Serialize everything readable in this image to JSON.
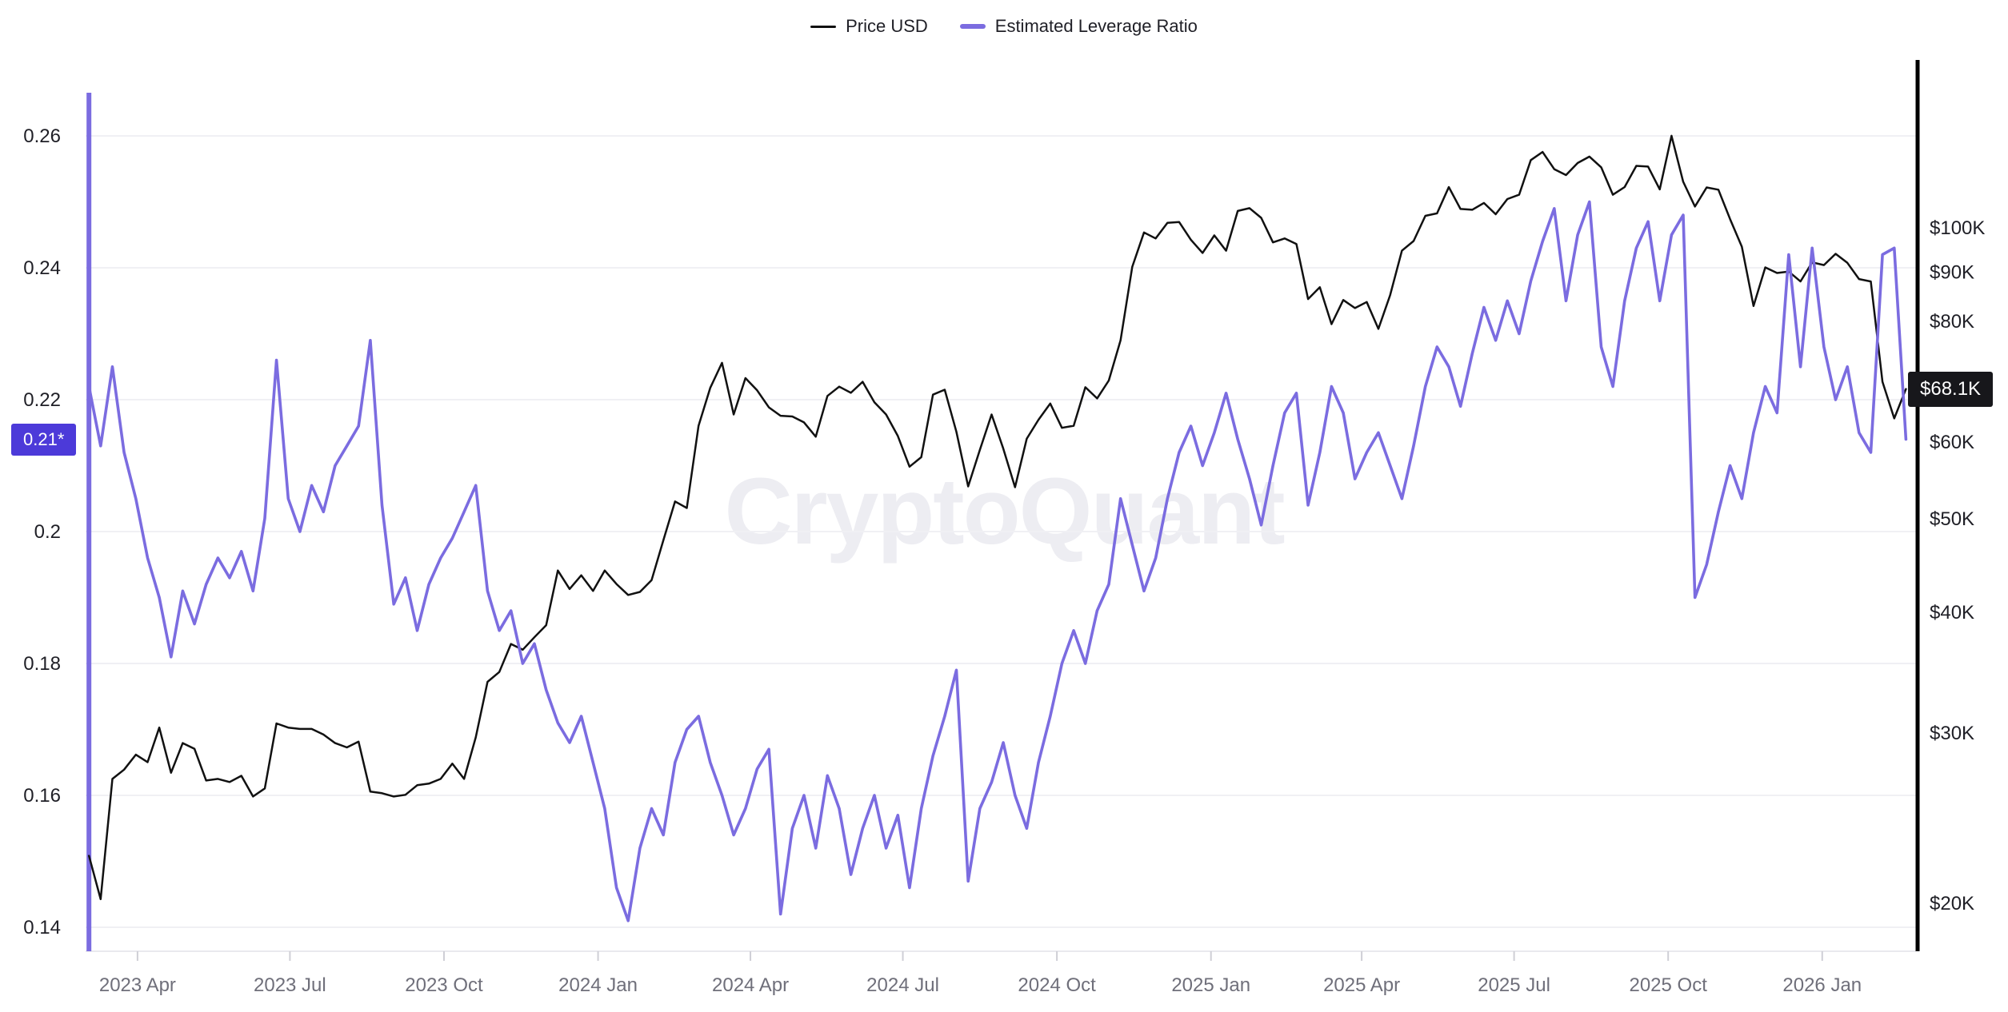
{
  "watermark": "CryptoQuant",
  "legend": {
    "items": [
      {
        "label": "Price USD",
        "color": "#111111"
      },
      {
        "label": "Estimated Leverage Ratio",
        "color": "#7b6ce0"
      }
    ]
  },
  "badges": {
    "left": {
      "text": "0.21*",
      "value": 0.214,
      "bg": "#4c3ad9"
    },
    "right": {
      "text": "$68.1K",
      "value": 68.1,
      "bg": "#17171b"
    }
  },
  "colors": {
    "price_line": "#111111",
    "leverage_line": "#7b6ce0",
    "grid": "#f0f0f4",
    "axis_label": "#1f1f26",
    "x_label": "#6f6f7a",
    "x_tick_mark": "#cfcfd6",
    "baseline": "#e9e9ee",
    "right_axis_line": "#000000"
  },
  "chart_data": {
    "type": "line",
    "title": "",
    "x_start_date": "2023-03-03",
    "interval_days": 7,
    "axis_window": {
      "start": "2023-03-01",
      "end": "2026-02-26"
    },
    "left_axis": {
      "scale": "linear",
      "ticks": [
        {
          "v": 0.26,
          "label": "0.26"
        },
        {
          "v": 0.24,
          "label": "0.24"
        },
        {
          "v": 0.22,
          "label": "0.22"
        },
        {
          "v": 0.2,
          "label": "0.2"
        },
        {
          "v": 0.18,
          "label": "0.18"
        },
        {
          "v": 0.16,
          "label": "0.16"
        },
        {
          "v": 0.14,
          "label": "0.14"
        }
      ]
    },
    "right_axis": {
      "scale": "log",
      "unit": "USD",
      "ticks": [
        {
          "v": 100,
          "label": "$100K"
        },
        {
          "v": 90,
          "label": "$90K"
        },
        {
          "v": 80,
          "label": "$80K"
        },
        {
          "v": 60,
          "label": "$60K"
        },
        {
          "v": 50,
          "label": "$50K"
        },
        {
          "v": 40,
          "label": "$40K"
        },
        {
          "v": 30,
          "label": "$30K"
        },
        {
          "v": 20,
          "label": "$20K"
        }
      ]
    },
    "x_axis": {
      "ticks": [
        {
          "date": "2023-04-01",
          "label": "2023 Apr"
        },
        {
          "date": "2023-07-01",
          "label": "2023 Jul"
        },
        {
          "date": "2023-10-01",
          "label": "2023 Oct"
        },
        {
          "date": "2024-01-01",
          "label": "2024 Jan"
        },
        {
          "date": "2024-04-01",
          "label": "2024 Apr"
        },
        {
          "date": "2024-07-01",
          "label": "2024 Jul"
        },
        {
          "date": "2024-10-01",
          "label": "2024 Oct"
        },
        {
          "date": "2025-01-01",
          "label": "2025 Jan"
        },
        {
          "date": "2025-04-01",
          "label": "2025 Apr"
        },
        {
          "date": "2025-07-01",
          "label": "2025 Jul"
        },
        {
          "date": "2025-10-01",
          "label": "2025 Oct"
        },
        {
          "date": "2026-01-01",
          "label": "2026 Jan"
        }
      ]
    },
    "artifacts": {
      "leverage_start_spike": true
    },
    "series": [
      {
        "name": "Price USD",
        "axis": "right",
        "color": "#111111",
        "unit": "USD thousands",
        "values": [
          22.4,
          20.2,
          26.9,
          27.5,
          28.5,
          28.0,
          30.4,
          27.3,
          29.3,
          28.9,
          26.8,
          26.9,
          26.7,
          27.1,
          25.8,
          26.3,
          30.7,
          30.4,
          30.3,
          30.3,
          29.9,
          29.3,
          29.0,
          29.4,
          26.1,
          26.0,
          25.8,
          25.9,
          26.5,
          26.6,
          26.9,
          27.9,
          26.9,
          29.7,
          33.9,
          34.7,
          37.1,
          36.6,
          37.7,
          38.8,
          44.2,
          42.3,
          43.7,
          42.1,
          44.2,
          42.8,
          41.7,
          42.0,
          43.2,
          47.5,
          52.1,
          51.3,
          62.4,
          68.3,
          72.5,
          64.1,
          69.9,
          67.9,
          65.2,
          63.9,
          63.8,
          62.9,
          60.8,
          67.0,
          68.5,
          67.5,
          69.3,
          66.0,
          64.1,
          60.9,
          56.6,
          57.9,
          67.2,
          68.0,
          61.5,
          54.0,
          58.9,
          64.1,
          59.1,
          53.9,
          60.5,
          63.3,
          65.8,
          62.1,
          62.4,
          68.4,
          66.6,
          69.5,
          76.5,
          91.1,
          98.9,
          97.5,
          101.2,
          101.4,
          97.2,
          94.2,
          98.2,
          94.7,
          104.1,
          104.8,
          102.4,
          96.6,
          97.5,
          96.2,
          84.4,
          86.8,
          79.5,
          84.2,
          82.6,
          83.8,
          78.6,
          85.2,
          94.7,
          96.9,
          102.9,
          103.5,
          110.2,
          104.6,
          104.4,
          106.1,
          103.3,
          107.1,
          108.2,
          117.5,
          119.8,
          115.0,
          113.4,
          116.7,
          118.5,
          115.5,
          108.2,
          110.2,
          115.9,
          115.7,
          109.6,
          124.5,
          111.6,
          105.2,
          110.1,
          109.5,
          102.1,
          95.6,
          83.0,
          91.0,
          89.8,
          90.1,
          88.0,
          92.1,
          91.5,
          94.0,
          92.0,
          88.5,
          88.0,
          69.3,
          63.5,
          68.1
        ]
      },
      {
        "name": "Estimated Leverage Ratio",
        "axis": "left",
        "color": "#7b6ce0",
        "values": [
          0.222,
          0.213,
          0.225,
          0.212,
          0.205,
          0.196,
          0.19,
          0.181,
          0.191,
          0.186,
          0.192,
          0.196,
          0.193,
          0.197,
          0.191,
          0.202,
          0.226,
          0.205,
          0.2,
          0.207,
          0.203,
          0.21,
          0.213,
          0.216,
          0.229,
          0.204,
          0.189,
          0.193,
          0.185,
          0.192,
          0.196,
          0.199,
          0.203,
          0.207,
          0.191,
          0.185,
          0.188,
          0.18,
          0.183,
          0.176,
          0.171,
          0.168,
          0.172,
          0.165,
          0.158,
          0.146,
          0.141,
          0.152,
          0.158,
          0.154,
          0.165,
          0.17,
          0.172,
          0.165,
          0.16,
          0.154,
          0.158,
          0.164,
          0.167,
          0.142,
          0.155,
          0.16,
          0.152,
          0.163,
          0.158,
          0.148,
          0.155,
          0.16,
          0.152,
          0.157,
          0.146,
          0.158,
          0.166,
          0.172,
          0.179,
          0.147,
          0.158,
          0.162,
          0.168,
          0.16,
          0.155,
          0.165,
          0.172,
          0.18,
          0.185,
          0.18,
          0.188,
          0.192,
          0.205,
          0.198,
          0.191,
          0.196,
          0.205,
          0.212,
          0.216,
          0.21,
          0.215,
          0.221,
          0.214,
          0.208,
          0.201,
          0.21,
          0.218,
          0.221,
          0.204,
          0.212,
          0.222,
          0.218,
          0.208,
          0.212,
          0.215,
          0.21,
          0.205,
          0.213,
          0.222,
          0.228,
          0.225,
          0.219,
          0.227,
          0.234,
          0.229,
          0.235,
          0.23,
          0.238,
          0.244,
          0.249,
          0.235,
          0.245,
          0.25,
          0.228,
          0.222,
          0.235,
          0.243,
          0.247,
          0.235,
          0.245,
          0.248,
          0.19,
          0.195,
          0.203,
          0.21,
          0.205,
          0.215,
          0.222,
          0.218,
          0.242,
          0.225,
          0.243,
          0.228,
          0.22,
          0.225,
          0.215,
          0.212,
          0.242,
          0.243,
          0.214
        ]
      }
    ]
  }
}
